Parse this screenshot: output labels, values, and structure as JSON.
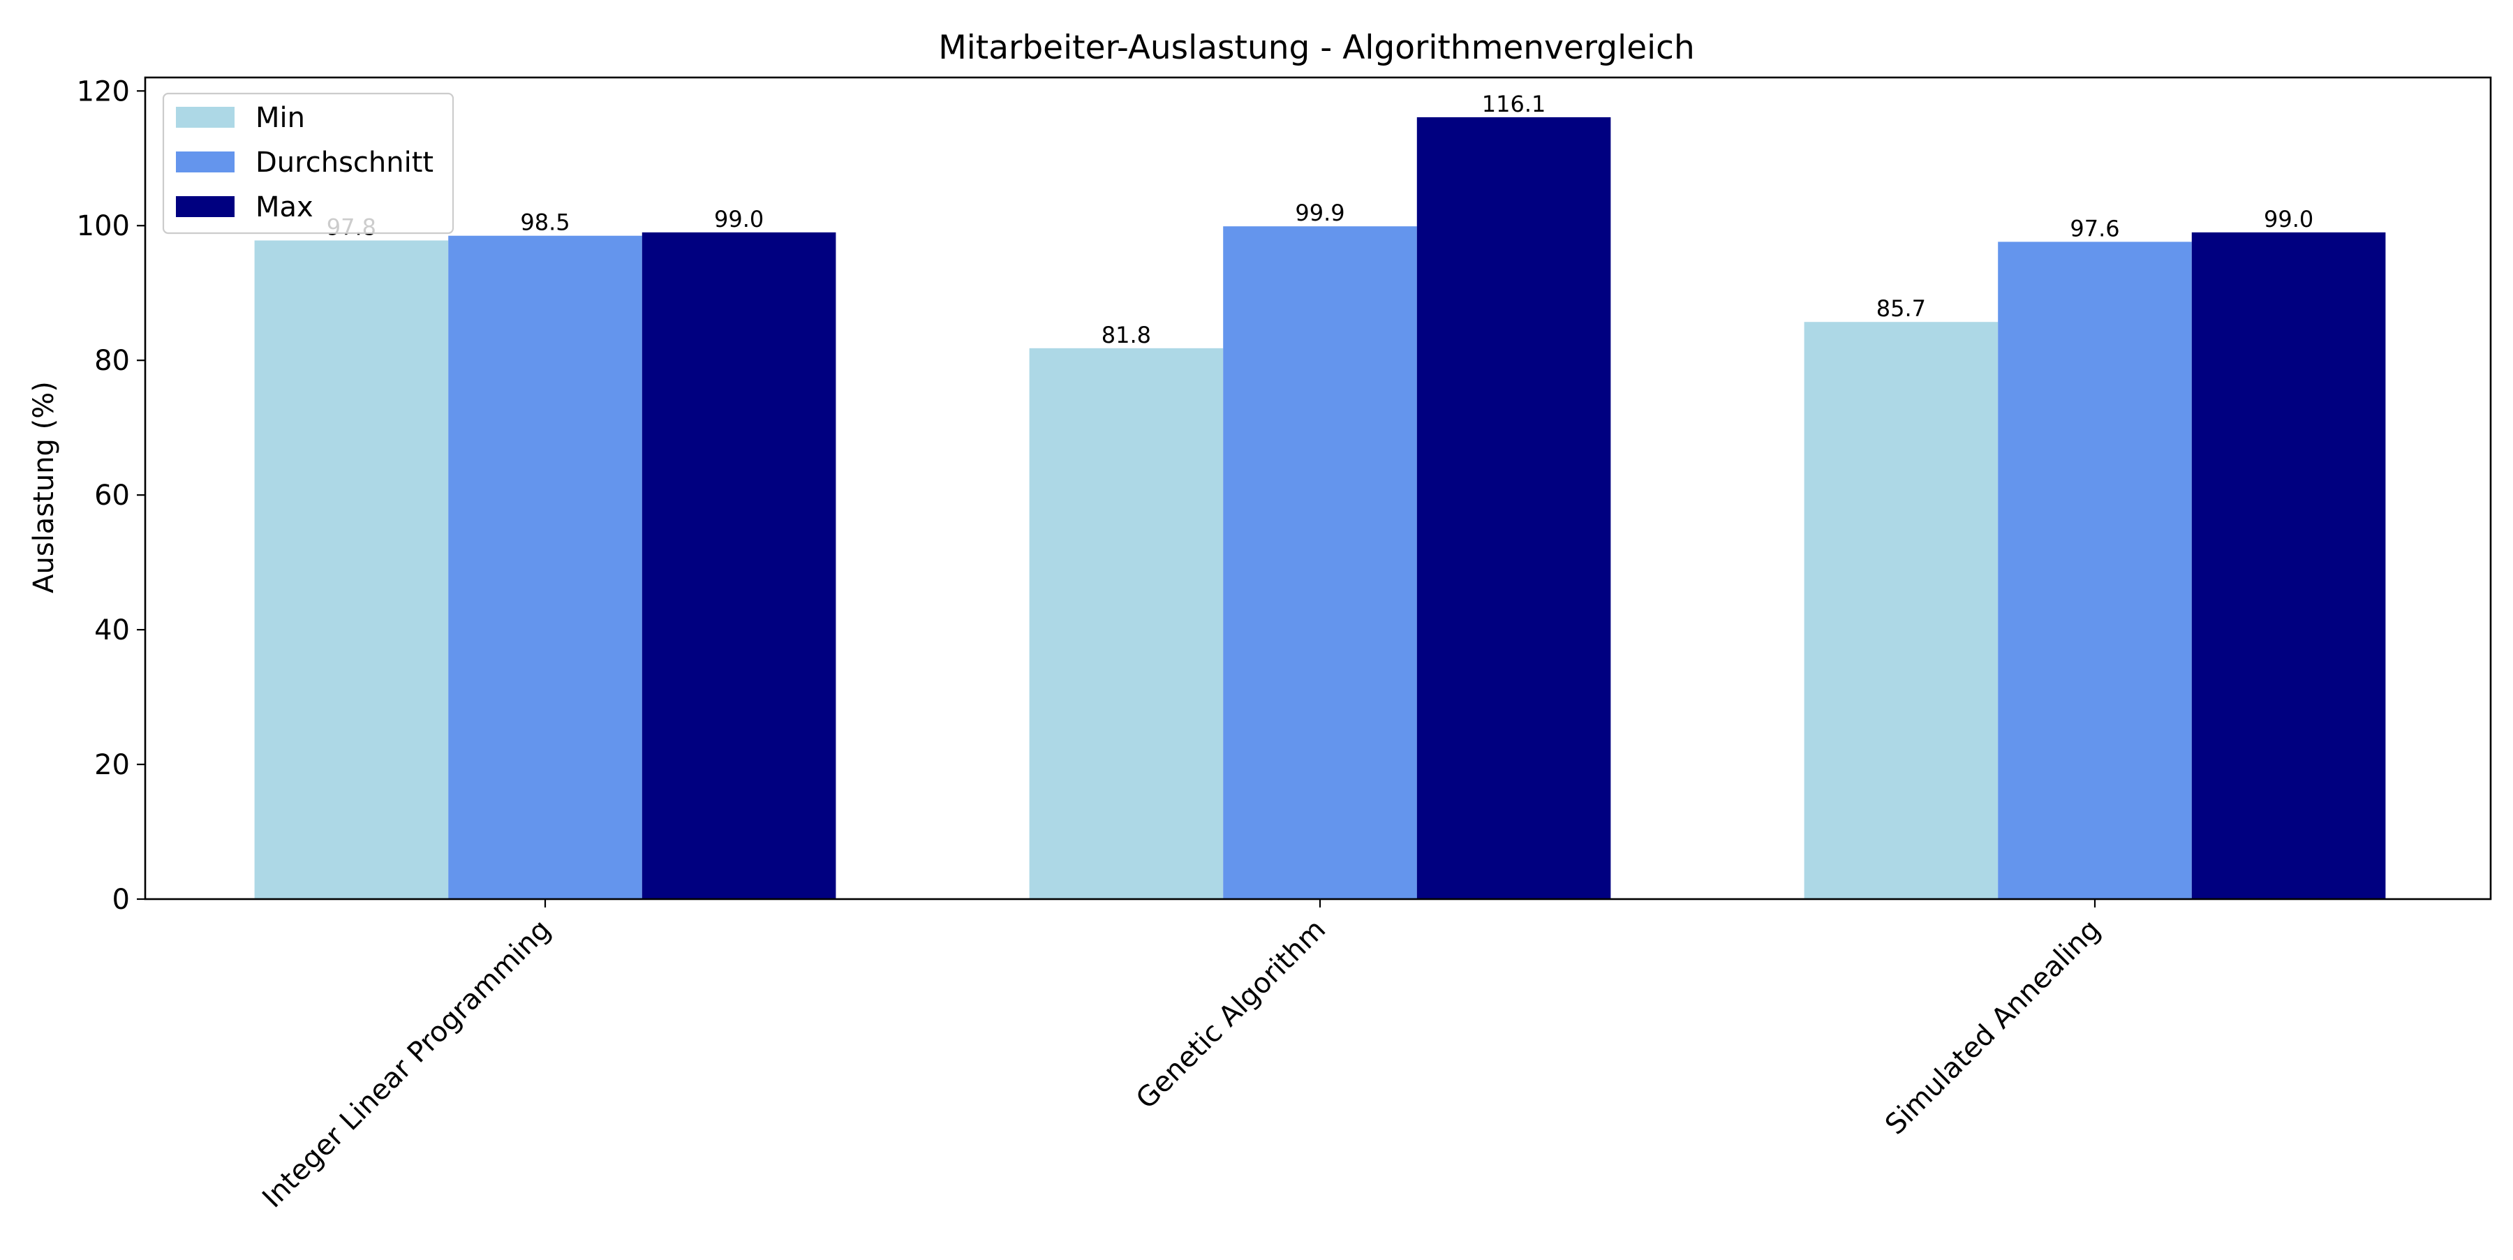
{
  "chart_data": {
    "type": "bar",
    "title": "Mitarbeiter-Auslastung - Algorithmenvergleich",
    "xlabel": "",
    "ylabel": "Auslastung (%)",
    "categories": [
      "Integer Linear Programming",
      "Genetic Algorithm",
      "Simulated Annealing"
    ],
    "series": [
      {
        "name": "Min",
        "color": "#add8e6",
        "values": [
          97.8,
          81.8,
          85.7
        ],
        "labels": [
          "97.8",
          "81.8",
          "85.7"
        ]
      },
      {
        "name": "Durchschnitt",
        "color": "#6495ed",
        "values": [
          98.5,
          99.9,
          97.6
        ],
        "labels": [
          "98.5",
          "99.9",
          "97.6"
        ]
      },
      {
        "name": "Max",
        "color": "#000080",
        "values": [
          99.0,
          116.1,
          99.0
        ],
        "labels": [
          "99.0",
          "116.1",
          "99.0"
        ]
      }
    ],
    "yticks": [
      0,
      20,
      40,
      60,
      80,
      100,
      120
    ],
    "ylim": [
      0,
      122
    ],
    "grid": false,
    "legend": "upper left"
  }
}
